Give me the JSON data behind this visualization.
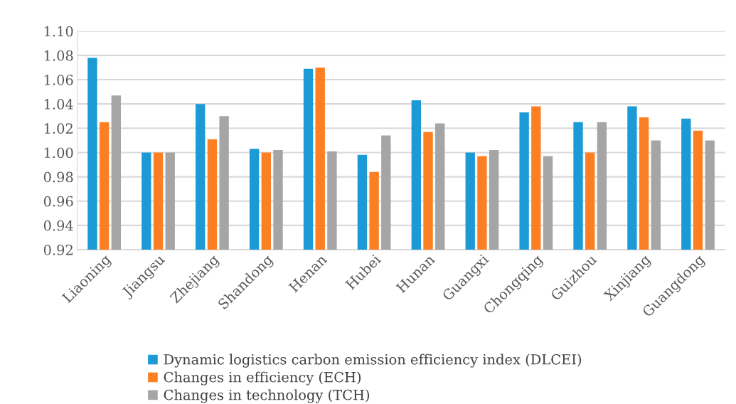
{
  "chart_data": {
    "type": "bar",
    "categories": [
      "Liaoning",
      "Jiangsu",
      "Zhejiang",
      "Shandong",
      "Henan",
      "Hubei",
      "Hunan",
      "Guangxi",
      "Chongqing",
      "Guizhou",
      "Xinjiang",
      "Guangdong"
    ],
    "series": [
      {
        "name": "Dynamic logistics carbon emission efficiency index (DLCEI)",
        "color": "#1b9ad6",
        "values": [
          1.078,
          1.0,
          1.04,
          1.003,
          1.069,
          0.998,
          1.043,
          1.0,
          1.033,
          1.025,
          1.038,
          1.028
        ]
      },
      {
        "name": "Changes in efficiency (ECH)",
        "color": "#fd7f23",
        "values": [
          1.025,
          1.0,
          1.011,
          1.0,
          1.07,
          0.984,
          1.017,
          0.997,
          1.038,
          1.0,
          1.029,
          1.018
        ]
      },
      {
        "name": "Changes in technology (TCH)",
        "color": "#a5a5a5",
        "values": [
          1.047,
          1.0,
          1.03,
          1.002,
          1.001,
          1.014,
          1.024,
          1.002,
          0.997,
          1.025,
          1.01,
          1.01
        ]
      }
    ],
    "ylim": [
      0.92,
      1.1
    ],
    "yticks": [
      {
        "value": 0.92,
        "label": "0.92"
      },
      {
        "value": 0.94,
        "label": "0.94"
      },
      {
        "value": 0.96,
        "label": "0.96"
      },
      {
        "value": 0.98,
        "label": "0.98"
      },
      {
        "value": 1.0,
        "label": "1.00"
      },
      {
        "value": 1.02,
        "label": "1.02"
      },
      {
        "value": 1.04,
        "label": "1.04"
      },
      {
        "value": 1.06,
        "label": "1.06"
      },
      {
        "value": 1.08,
        "label": "1.08"
      },
      {
        "value": 1.1,
        "label": "1.10"
      }
    ],
    "grid": "y",
    "legend": "bottom"
  }
}
